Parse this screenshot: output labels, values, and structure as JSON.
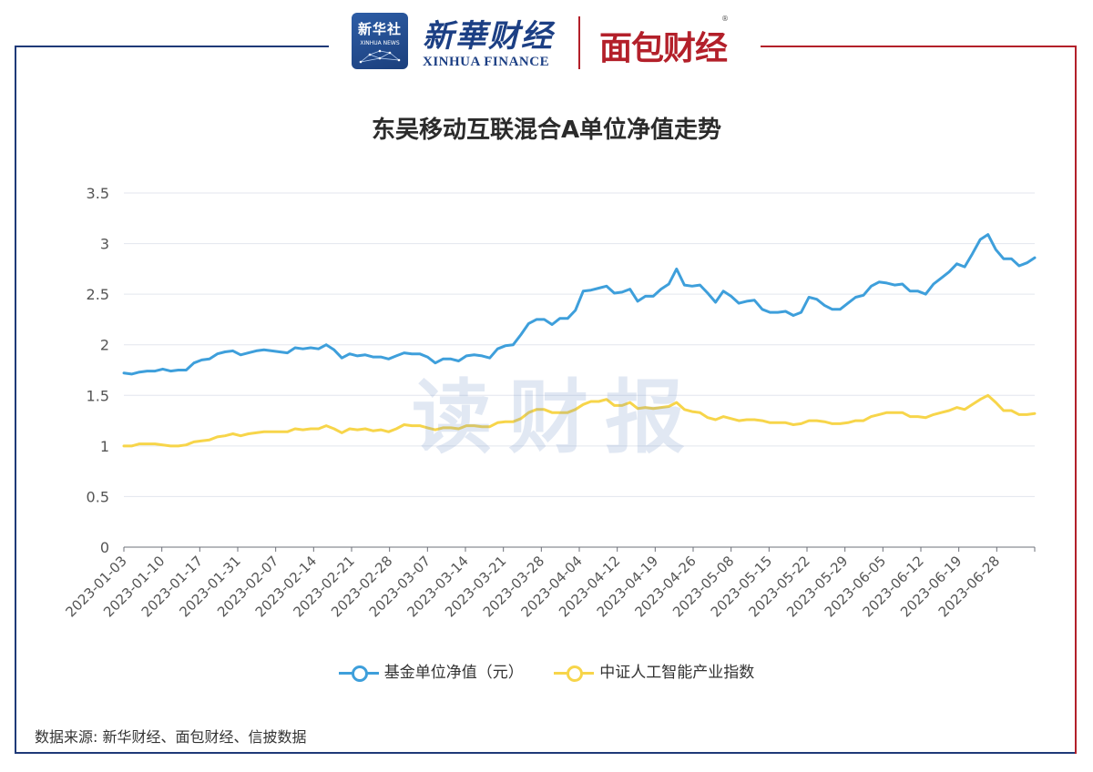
{
  "header": {
    "xinhua_badge_cn": "新华社",
    "xinhua_badge_en": "XINHUA NEWS",
    "xinhua_finance_cn": "新華财经",
    "xinhua_finance_en": "XINHUA FINANCE",
    "mianbao_logo": "面包财经",
    "registered_mark": "®"
  },
  "watermark": "读财报",
  "source_note": "数据来源: 新华财经、面包财经、信披数据",
  "colors": {
    "fund": "#3e9fdb",
    "index": "#f7d54a",
    "frame_left": "#1f3a78",
    "frame_right": "#b3202a"
  },
  "chart_data": {
    "type": "line",
    "title": "东吴移动互联混合A单位净值走势",
    "ylim": [
      0,
      3.5
    ],
    "yticks": [
      "0",
      "0.5",
      "1",
      "1.5",
      "2",
      "2.5",
      "3",
      "3.5"
    ],
    "ytick_values": [
      0,
      0.5,
      1,
      1.5,
      2,
      2.5,
      3,
      3.5
    ],
    "grid": true,
    "legend_position": "bottom-center",
    "xtick_labels": [
      "2023-01-03",
      "2023-01-10",
      "2023-01-17",
      "2023-01-31",
      "2023-02-07",
      "2023-02-14",
      "2023-02-21",
      "2023-02-28",
      "2023-03-07",
      "2023-03-14",
      "2023-03-21",
      "2023-03-28",
      "2023-04-04",
      "2023-04-12",
      "2023-04-19",
      "2023-04-26",
      "2023-05-08",
      "2023-05-15",
      "2023-05-22",
      "2023-05-29",
      "2023-06-05",
      "2023-06-12",
      "2023-06-19",
      "2023-06-28"
    ],
    "series": [
      {
        "name": "基金单位净值（元）",
        "color": "#3e9fdb",
        "values": [
          1.72,
          1.71,
          1.73,
          1.74,
          1.74,
          1.76,
          1.74,
          1.75,
          1.75,
          1.82,
          1.85,
          1.86,
          1.91,
          1.93,
          1.94,
          1.9,
          1.92,
          1.94,
          1.95,
          1.94,
          1.93,
          1.92,
          1.97,
          1.96,
          1.97,
          1.96,
          2.0,
          1.95,
          1.87,
          1.91,
          1.89,
          1.9,
          1.88,
          1.88,
          1.86,
          1.89,
          1.92,
          1.91,
          1.91,
          1.88,
          1.82,
          1.86,
          1.86,
          1.84,
          1.89,
          1.9,
          1.89,
          1.87,
          1.96,
          1.99,
          2.0,
          2.1,
          2.21,
          2.25,
          2.25,
          2.2,
          2.26,
          2.26,
          2.34,
          2.53,
          2.54,
          2.56,
          2.58,
          2.51,
          2.52,
          2.55,
          2.43,
          2.48,
          2.48,
          2.55,
          2.6,
          2.75,
          2.59,
          2.58,
          2.59,
          2.51,
          2.42,
          2.53,
          2.48,
          2.41,
          2.43,
          2.44,
          2.35,
          2.32,
          2.32,
          2.33,
          2.29,
          2.32,
          2.47,
          2.45,
          2.39,
          2.35,
          2.35,
          2.41,
          2.47,
          2.49,
          2.58,
          2.62,
          2.61,
          2.59,
          2.6,
          2.53,
          2.53,
          2.5,
          2.6,
          2.66,
          2.72,
          2.8,
          2.77,
          2.9,
          3.04,
          3.09,
          2.94,
          2.85,
          2.85,
          2.78,
          2.81,
          2.86
        ]
      },
      {
        "name": "中证人工智能产业指数",
        "color": "#f7d54a",
        "values": [
          1.0,
          1.0,
          1.02,
          1.02,
          1.02,
          1.01,
          1.0,
          1.0,
          1.01,
          1.04,
          1.05,
          1.06,
          1.09,
          1.1,
          1.12,
          1.1,
          1.12,
          1.13,
          1.14,
          1.14,
          1.14,
          1.14,
          1.17,
          1.16,
          1.17,
          1.17,
          1.2,
          1.17,
          1.13,
          1.17,
          1.16,
          1.17,
          1.15,
          1.16,
          1.14,
          1.17,
          1.21,
          1.2,
          1.2,
          1.18,
          1.16,
          1.18,
          1.18,
          1.17,
          1.2,
          1.2,
          1.19,
          1.19,
          1.23,
          1.24,
          1.24,
          1.27,
          1.33,
          1.36,
          1.36,
          1.33,
          1.33,
          1.33,
          1.36,
          1.41,
          1.44,
          1.44,
          1.46,
          1.4,
          1.4,
          1.43,
          1.37,
          1.38,
          1.37,
          1.38,
          1.39,
          1.43,
          1.36,
          1.34,
          1.33,
          1.28,
          1.26,
          1.29,
          1.27,
          1.25,
          1.26,
          1.26,
          1.25,
          1.23,
          1.23,
          1.23,
          1.21,
          1.22,
          1.25,
          1.25,
          1.24,
          1.22,
          1.22,
          1.23,
          1.25,
          1.25,
          1.29,
          1.31,
          1.33,
          1.33,
          1.33,
          1.29,
          1.29,
          1.28,
          1.31,
          1.33,
          1.35,
          1.38,
          1.36,
          1.41,
          1.46,
          1.5,
          1.43,
          1.35,
          1.35,
          1.31,
          1.31,
          1.32
        ]
      }
    ]
  }
}
